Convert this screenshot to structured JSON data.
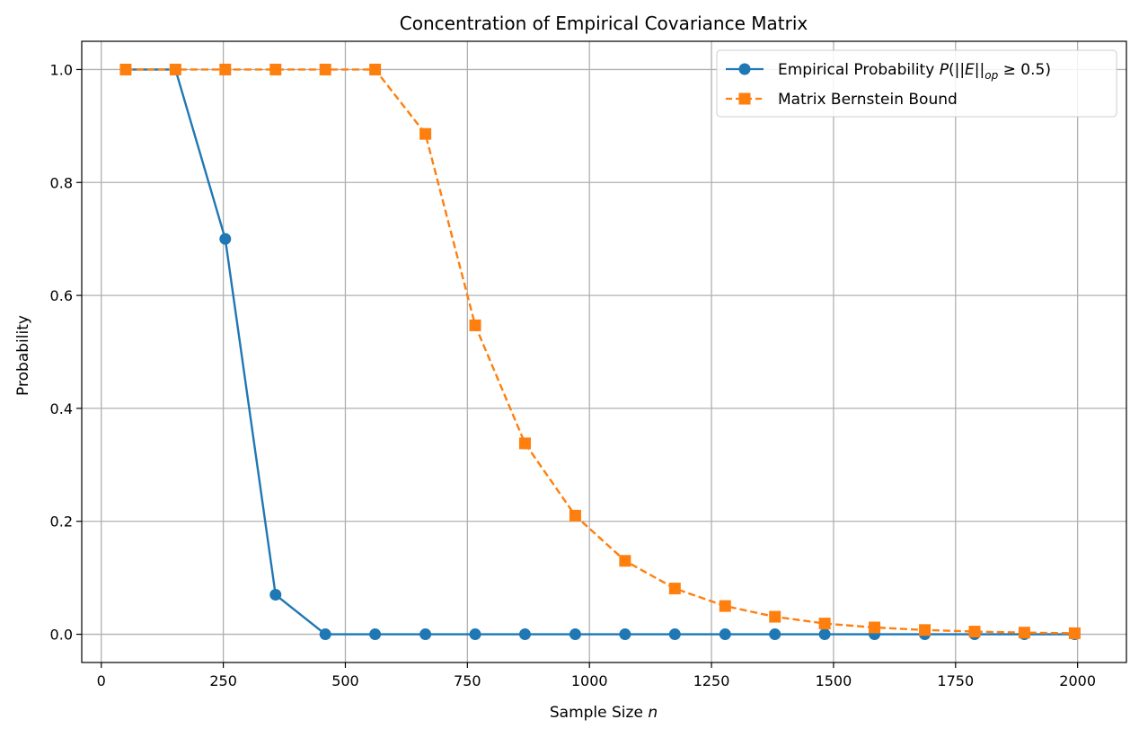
{
  "chart_data": {
    "type": "line",
    "title": "Concentration of Empirical Covariance Matrix",
    "xlabel": "Sample Size n",
    "ylabel": "Probability",
    "xlim": [
      -40,
      2100
    ],
    "ylim": [
      -0.05,
      1.05
    ],
    "x_ticks": [
      0,
      250,
      500,
      750,
      1000,
      1250,
      1500,
      1750,
      2000
    ],
    "y_ticks": [
      0.0,
      0.2,
      0.4,
      0.6,
      0.8,
      1.0
    ],
    "x_tick_labels": [
      "0",
      "250",
      "500",
      "750",
      "1000",
      "1250",
      "1500",
      "1750",
      "2000"
    ],
    "y_tick_labels": [
      "0.0",
      "0.2",
      "0.4",
      "0.6",
      "0.8",
      "1.0"
    ],
    "grid": true,
    "legend_position": "top-right",
    "x": [
      50,
      152,
      254,
      357,
      459,
      561,
      664,
      766,
      868,
      971,
      1073,
      1175,
      1278,
      1380,
      1482,
      1584,
      1687,
      1789,
      1891,
      1994
    ],
    "series": [
      {
        "name": "Empirical Probability P(||E||op ≥ 0.5)",
        "color": "#1f77b4",
        "marker": "circle",
        "line_style": "solid",
        "values": [
          1.0,
          1.0,
          0.7,
          0.07,
          0.0,
          0.0,
          0.0,
          0.0,
          0.0,
          0.0,
          0.0,
          0.0,
          0.0,
          0.0,
          0.0,
          0.0,
          0.0,
          0.0,
          0.0,
          0.0
        ]
      },
      {
        "name": "Matrix Bernstein Bound",
        "color": "#ff7f0e",
        "marker": "square",
        "line_style": "dashed",
        "values": [
          1.0,
          1.0,
          1.0,
          1.0,
          1.0,
          1.0,
          0.886,
          0.547,
          0.338,
          0.21,
          0.13,
          0.081,
          0.05,
          0.031,
          0.019,
          0.012,
          0.0075,
          0.0047,
          0.0029,
          0.0018
        ]
      }
    ]
  }
}
